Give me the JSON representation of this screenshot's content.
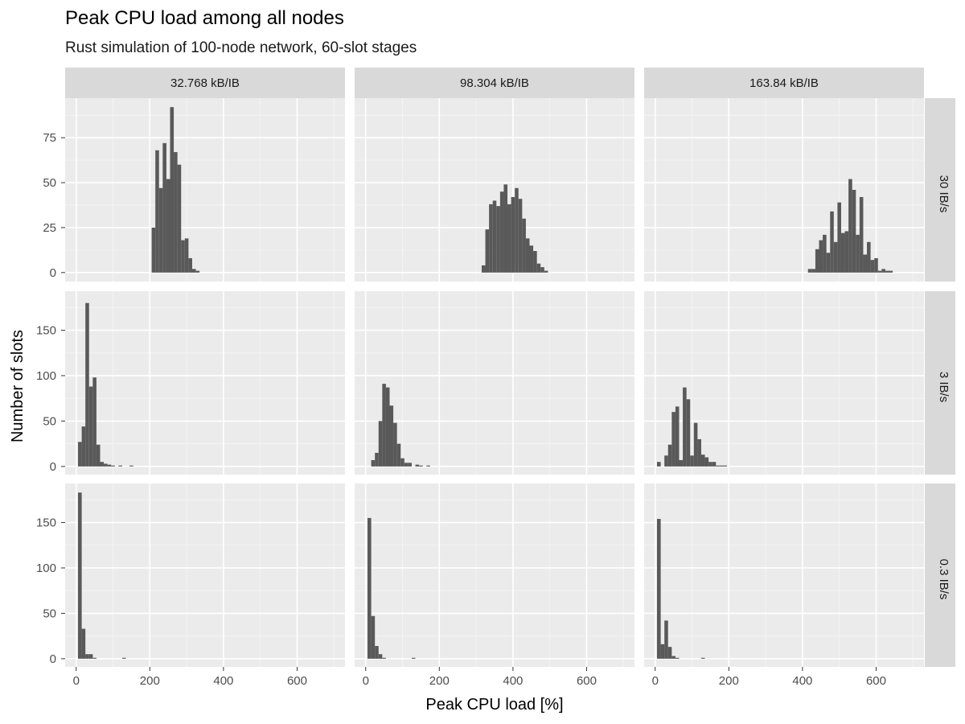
{
  "chart_data": {
    "type": "bar",
    "title": "Peak CPU load among all nodes",
    "subtitle": "Rust simulation of 100-node network, 60-slot stages",
    "xlabel": "Peak CPU load [%]",
    "ylabel": "Number of slots",
    "facet_columns": [
      "32.768 kB/IB",
      "98.304 kB/IB",
      "163.84 kB/IB"
    ],
    "facet_rows": [
      "30 IB/s",
      "3 IB/s",
      "0.3 IB/s"
    ],
    "xlim": [
      -30,
      730
    ],
    "x_ticks": [
      0,
      200,
      400,
      600
    ],
    "bin_width": 10,
    "grid": true,
    "rows": [
      {
        "ylim": [
          -5,
          97
        ],
        "y_ticks": [
          0,
          25,
          50,
          75
        ],
        "panels": [
          {
            "bins": [
              [
                210,
                25
              ],
              [
                220,
                68
              ],
              [
                230,
                47
              ],
              [
                240,
                72
              ],
              [
                250,
                52
              ],
              [
                260,
                92
              ],
              [
                270,
                67
              ],
              [
                280,
                60
              ],
              [
                290,
                18
              ],
              [
                300,
                19
              ],
              [
                310,
                8
              ],
              [
                320,
                2
              ],
              [
                330,
                1
              ]
            ]
          },
          {
            "bins": [
              [
                320,
                4
              ],
              [
                330,
                24
              ],
              [
                340,
                38
              ],
              [
                350,
                40
              ],
              [
                360,
                37
              ],
              [
                370,
                45
              ],
              [
                380,
                49
              ],
              [
                390,
                38
              ],
              [
                400,
                42
              ],
              [
                410,
                47
              ],
              [
                420,
                41
              ],
              [
                430,
                30
              ],
              [
                440,
                19
              ],
              [
                450,
                15
              ],
              [
                460,
                12
              ],
              [
                470,
                5
              ],
              [
                480,
                3
              ],
              [
                490,
                1
              ]
            ]
          },
          {
            "bins": [
              [
                420,
                2
              ],
              [
                430,
                2
              ],
              [
                440,
                13
              ],
              [
                450,
                18
              ],
              [
                460,
                21
              ],
              [
                470,
                11
              ],
              [
                480,
                34
              ],
              [
                490,
                17
              ],
              [
                500,
                39
              ],
              [
                510,
                22
              ],
              [
                520,
                23
              ],
              [
                530,
                52
              ],
              [
                540,
                46
              ],
              [
                550,
                21
              ],
              [
                560,
                42
              ],
              [
                570,
                10
              ],
              [
                580,
                17
              ],
              [
                590,
                7
              ],
              [
                600,
                8
              ],
              [
                610,
                1
              ],
              [
                620,
                2
              ],
              [
                630,
                1
              ],
              [
                640,
                1
              ]
            ]
          }
        ]
      },
      {
        "ylim": [
          -9,
          193
        ],
        "y_ticks": [
          0,
          50,
          100,
          150
        ],
        "panels": [
          {
            "bins": [
              [
                10,
                27
              ],
              [
                20,
                44
              ],
              [
                30,
                180
              ],
              [
                40,
                88
              ],
              [
                50,
                98
              ],
              [
                60,
                24
              ],
              [
                70,
                5
              ],
              [
                80,
                3
              ],
              [
                90,
                2
              ],
              [
                100,
                1
              ],
              [
                120,
                1
              ],
              [
                150,
                1
              ]
            ]
          },
          {
            "bins": [
              [
                20,
                7
              ],
              [
                30,
                15
              ],
              [
                40,
                50
              ],
              [
                50,
                91
              ],
              [
                60,
                87
              ],
              [
                70,
                67
              ],
              [
                80,
                48
              ],
              [
                90,
                25
              ],
              [
                100,
                9
              ],
              [
                110,
                4
              ],
              [
                120,
                4
              ],
              [
                140,
                2
              ],
              [
                150,
                1
              ],
              [
                170,
                1
              ]
            ]
          },
          {
            "bins": [
              [
                10,
                5
              ],
              [
                30,
                12
              ],
              [
                40,
                24
              ],
              [
                50,
                60
              ],
              [
                60,
                66
              ],
              [
                70,
                7
              ],
              [
                80,
                87
              ],
              [
                90,
                74
              ],
              [
                100,
                12
              ],
              [
                110,
                48
              ],
              [
                120,
                30
              ],
              [
                130,
                13
              ],
              [
                140,
                10
              ],
              [
                150,
                5
              ],
              [
                160,
                5
              ],
              [
                170,
                1
              ],
              [
                180,
                1
              ],
              [
                190,
                1
              ]
            ]
          }
        ]
      },
      {
        "ylim": [
          -9,
          193
        ],
        "y_ticks": [
          0,
          50,
          100,
          150
        ],
        "panels": [
          {
            "bins": [
              [
                10,
                183
              ],
              [
                20,
                33
              ],
              [
                30,
                5
              ],
              [
                40,
                5
              ],
              [
                50,
                1
              ],
              [
                130,
                1
              ]
            ]
          },
          {
            "bins": [
              [
                10,
                155
              ],
              [
                20,
                47
              ],
              [
                30,
                14
              ],
              [
                40,
                5
              ],
              [
                50,
                1
              ],
              [
                130,
                1
              ]
            ]
          },
          {
            "bins": [
              [
                10,
                154
              ],
              [
                20,
                16
              ],
              [
                30,
                42
              ],
              [
                40,
                13
              ],
              [
                50,
                3
              ],
              [
                60,
                1
              ],
              [
                130,
                1
              ]
            ]
          }
        ]
      }
    ]
  }
}
